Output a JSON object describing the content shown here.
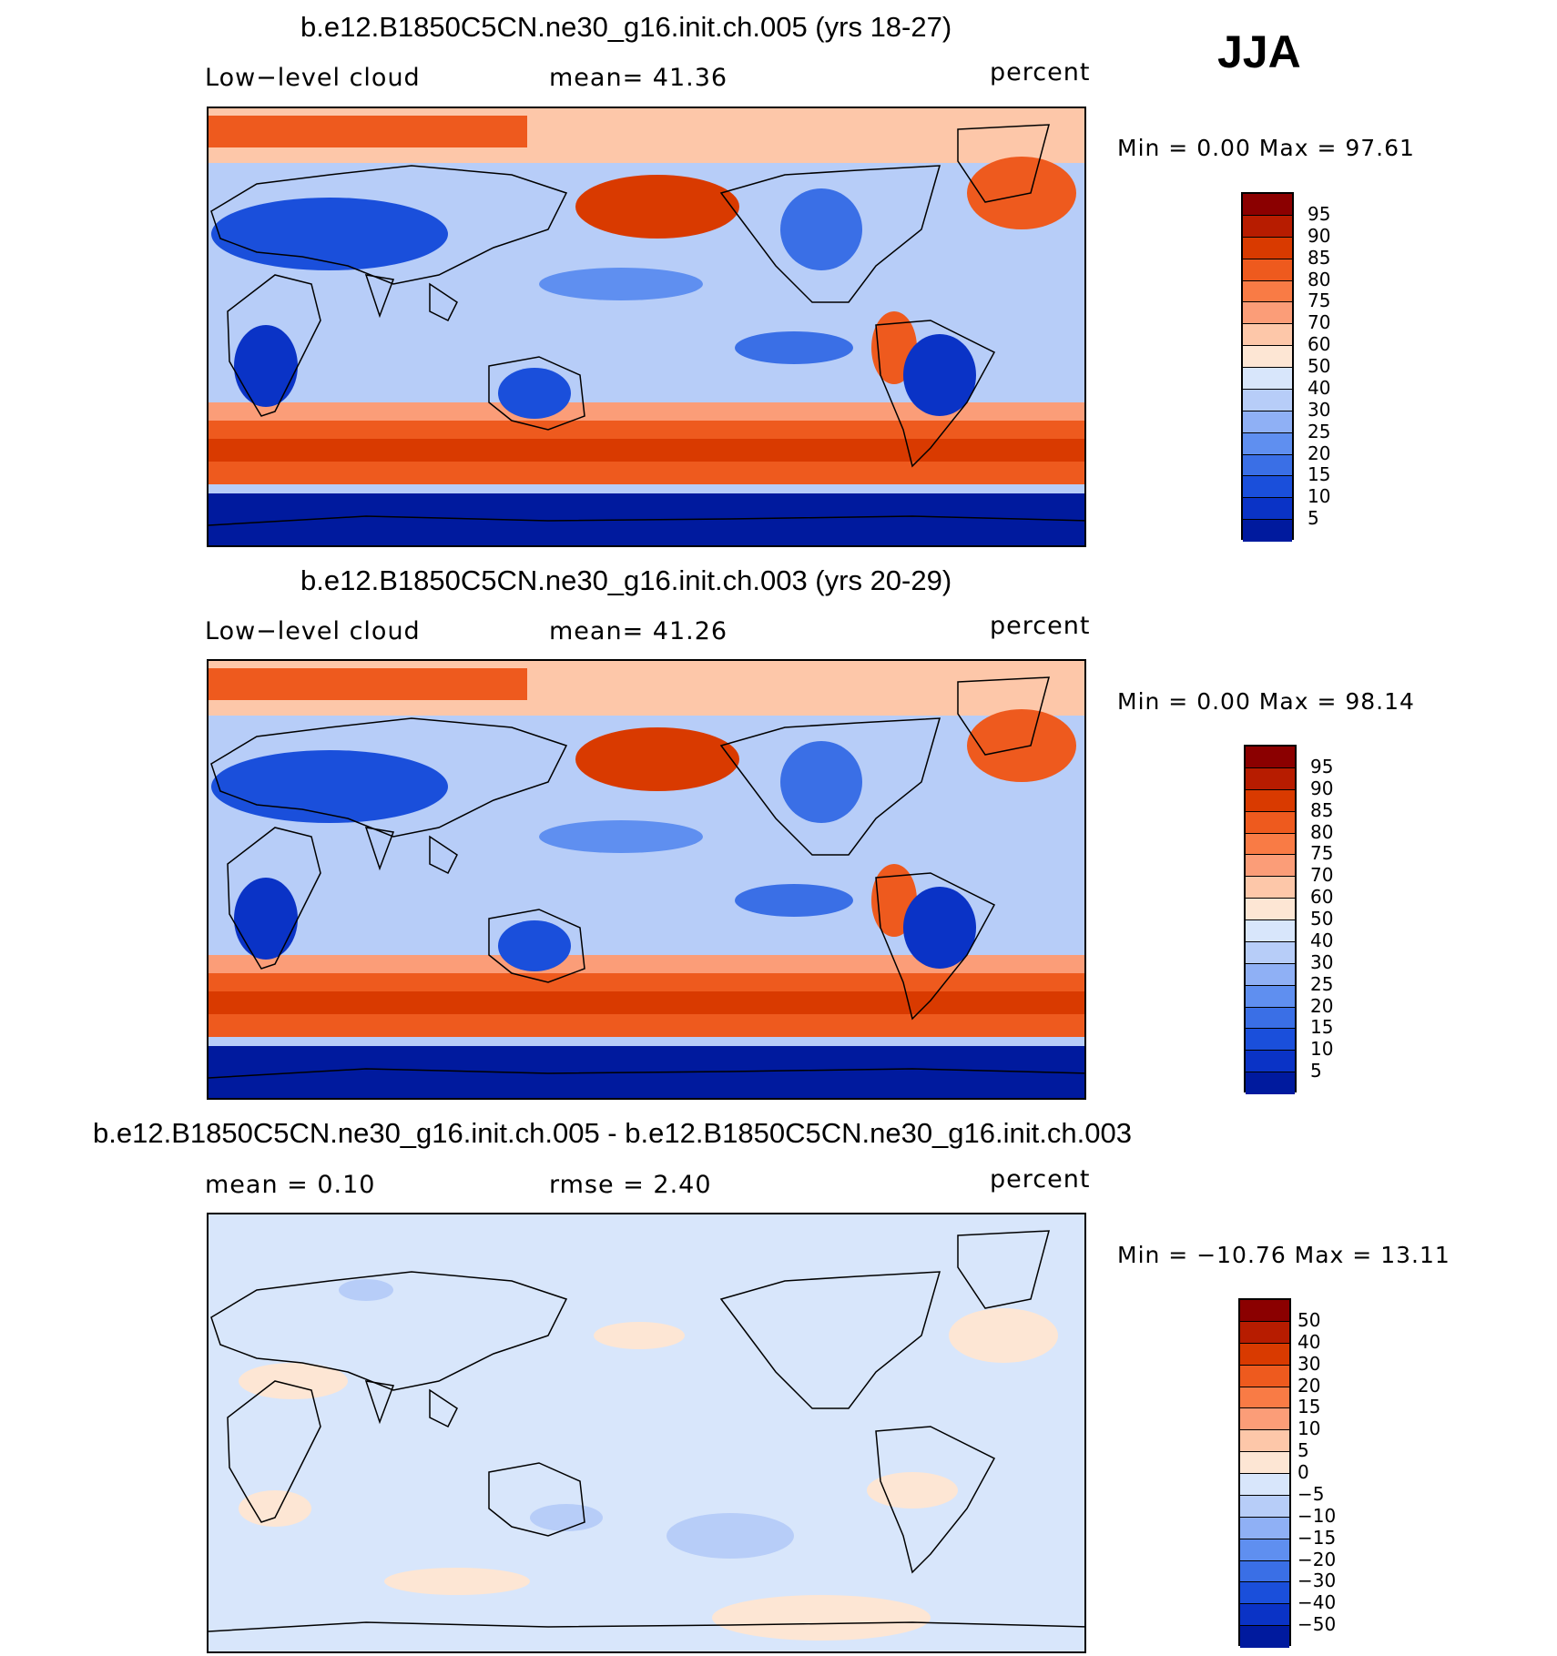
{
  "season": "JJA",
  "panels": [
    {
      "title": "b.e12.B1850C5CN.ne30_g16.init.ch.005 (yrs 18-27)",
      "variable": "Low−level cloud",
      "stat": "mean=   41.36",
      "units": "percent",
      "minmax": "Min =     0.00  Max =    97.61",
      "map_kind": "abs",
      "colorbar": {
        "labels": [
          "95",
          "90",
          "85",
          "80",
          "75",
          "70",
          "60",
          "50",
          "40",
          "30",
          "25",
          "20",
          "15",
          "10",
          "5"
        ],
        "colors": [
          "#8b0000",
          "#b71c00",
          "#d93a00",
          "#ee5a1e",
          "#f97b45",
          "#fb9d78",
          "#fdc7a9",
          "#fde6d4",
          "#d8e6fb",
          "#b7cdf8",
          "#8fb0f5",
          "#5f8ff0",
          "#3a6fe6",
          "#1a4fdb",
          "#0a33c6",
          "#001a9e"
        ]
      }
    },
    {
      "title": "b.e12.B1850C5CN.ne30_g16.init.ch.003 (yrs 20-29)",
      "variable": "Low−level cloud",
      "stat": "mean=   41.26",
      "units": "percent",
      "minmax": "Min =     0.00  Max =    98.14",
      "map_kind": "abs",
      "colorbar": {
        "labels": [
          "95",
          "90",
          "85",
          "80",
          "75",
          "70",
          "60",
          "50",
          "40",
          "30",
          "25",
          "20",
          "15",
          "10",
          "5"
        ],
        "colors": [
          "#8b0000",
          "#b71c00",
          "#d93a00",
          "#ee5a1e",
          "#f97b45",
          "#fb9d78",
          "#fdc7a9",
          "#fde6d4",
          "#d8e6fb",
          "#b7cdf8",
          "#8fb0f5",
          "#5f8ff0",
          "#3a6fe6",
          "#1a4fdb",
          "#0a33c6",
          "#001a9e"
        ]
      }
    },
    {
      "title": "b.e12.B1850C5CN.ne30_g16.init.ch.005 - b.e12.B1850C5CN.ne30_g16.init.ch.003",
      "variable": "mean =     0.10",
      "stat": "rmse =     2.40",
      "units": "percent",
      "minmax": "Min = −10.76  Max =    13.11",
      "map_kind": "diff",
      "colorbar": {
        "labels": [
          "50",
          "40",
          "30",
          "20",
          "15",
          "10",
          "5",
          "0",
          "−5",
          "−10",
          "−15",
          "−20",
          "−30",
          "−40",
          "−50"
        ],
        "colors": [
          "#8b0000",
          "#b71c00",
          "#d93a00",
          "#ee5a1e",
          "#f97b45",
          "#fb9d78",
          "#fdc7a9",
          "#fde6d4",
          "#d8e6fb",
          "#b7cdf8",
          "#8fb0f5",
          "#5f8ff0",
          "#3a6fe6",
          "#1a4fdb",
          "#0a33c6",
          "#001a9e"
        ]
      }
    }
  ]
}
